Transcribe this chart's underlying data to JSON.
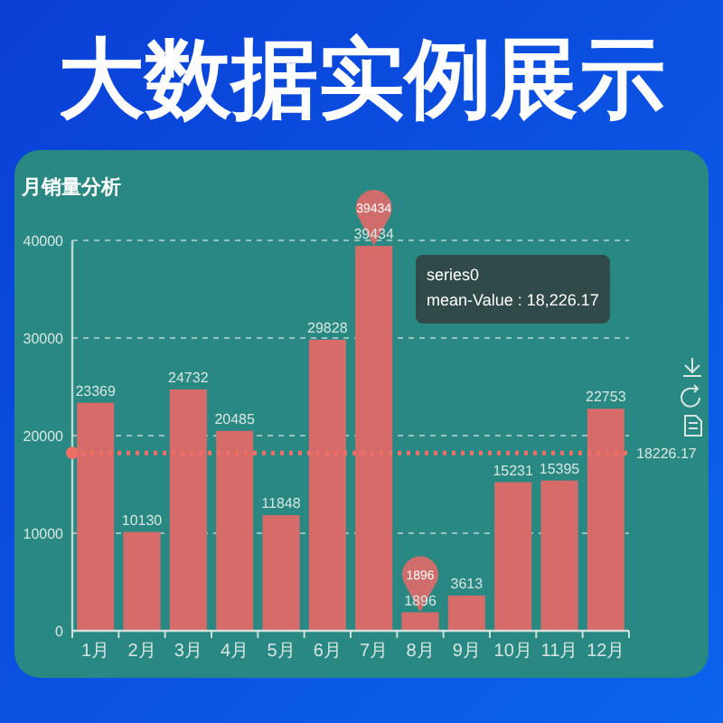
{
  "chart_data": {
    "type": "bar",
    "title": "大数据实例展示",
    "subtitle": "月销量分析",
    "categories": [
      "1月",
      "2月",
      "3月",
      "4月",
      "5月",
      "6月",
      "7月",
      "8月",
      "9月",
      "10月",
      "11月",
      "12月"
    ],
    "values": [
      23369,
      10130,
      24732,
      20485,
      11848,
      29828,
      39434,
      1896,
      3613,
      15231,
      15395,
      22753
    ],
    "color": "#d76b69",
    "ylim": [
      0,
      40000
    ],
    "yticks": [
      0,
      10000,
      20000,
      30000,
      40000
    ],
    "grid": "y",
    "data_labels": true,
    "ref_lines": [
      {
        "axis": "y",
        "value": 18226.17,
        "label": "18226.17",
        "color": "#ee6f66",
        "line_style": "dotted"
      }
    ],
    "annotations": [
      {
        "text": "39434",
        "x": "7月",
        "y": 39434
      },
      {
        "text": "1896",
        "x": "8月",
        "y": 1896
      },
      "series0",
      "mean-Value : 18,226.17"
    ]
  }
}
